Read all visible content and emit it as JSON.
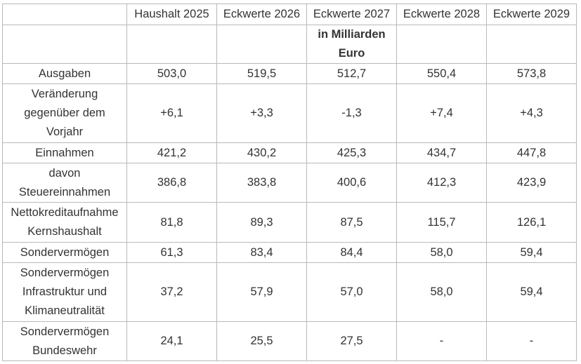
{
  "table": {
    "headers": [
      "",
      "Haushalt 2025",
      "Eckwerte 2026",
      "Eckwerte 2027",
      "Eckwerte 2028",
      "Eckwerte 2029"
    ],
    "unit_lines": [
      "in Milliarden",
      "Euro"
    ],
    "rows": [
      {
        "label_lines": [
          "Ausgaben"
        ],
        "values": [
          "503,0",
          "519,5",
          "512,7",
          "550,4",
          "573,8"
        ]
      },
      {
        "label_lines": [
          "Veränderung",
          "gegenüber dem",
          "Vorjahr"
        ],
        "values": [
          "+6,1",
          "+3,3",
          "-1,3",
          "+7,4",
          "+4,3"
        ]
      },
      {
        "label_lines": [
          "Einnahmen"
        ],
        "values": [
          "421,2",
          "430,2",
          "425,3",
          "434,7",
          "447,8"
        ]
      },
      {
        "label_lines": [
          "davon",
          "Steuereinnahmen"
        ],
        "values": [
          "386,8",
          "383,8",
          "400,6",
          "412,3",
          "423,9"
        ]
      },
      {
        "label_lines": [
          "Nettokreditaufnahme",
          "Kernshaushalt"
        ],
        "values": [
          "81,8",
          "89,3",
          "87,5",
          "115,7",
          "126,1"
        ]
      },
      {
        "label_lines": [
          "Sondervermögen"
        ],
        "values": [
          "61,3",
          "83,4",
          "84,4",
          "58,0",
          "59,4"
        ]
      },
      {
        "label_lines": [
          "Sondervermögen",
          "Infrastruktur und",
          "Klimaneutralität"
        ],
        "values": [
          "37,2",
          "57,9",
          "57,0",
          "58,0",
          "59,4"
        ]
      },
      {
        "label_lines": [
          "Sondervermögen",
          "Bundeswehr"
        ],
        "values": [
          "24,1",
          "25,5",
          "27,5",
          "-",
          "-"
        ]
      }
    ]
  }
}
